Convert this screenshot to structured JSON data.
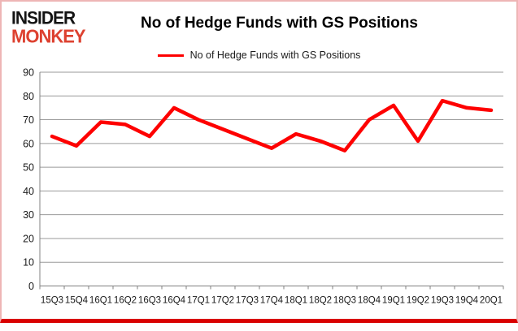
{
  "logo": {
    "line1": "INSIDER",
    "line2": "MONKEY"
  },
  "title": "No of Hedge Funds with GS Positions",
  "legend": {
    "label": "No of Hedge Funds with GS Positions"
  },
  "colors": {
    "series_line": "#fe0000",
    "logo_accent": "#dd4130",
    "gridline": "#9a9a9a",
    "axis": "#808080",
    "frame_border": "#eeb5b5",
    "bottom_rule": "#d90000",
    "label_text": "#1a1a1a"
  },
  "chart_data": {
    "type": "line",
    "title": "No of Hedge Funds with GS Positions",
    "xlabel": "",
    "ylabel": "",
    "categories": [
      "15Q3",
      "15Q4",
      "16Q1",
      "16Q2",
      "16Q3",
      "16Q4",
      "17Q1",
      "17Q2",
      "17Q3",
      "17Q4",
      "18Q1",
      "18Q2",
      "18Q3",
      "18Q4",
      "19Q1",
      "19Q2",
      "19Q3",
      "19Q4",
      "20Q1"
    ],
    "series": [
      {
        "name": "No of Hedge Funds with GS Positions",
        "color": "#fe0000",
        "values": [
          63,
          59,
          69,
          68,
          63,
          75,
          70,
          66,
          62,
          58,
          64,
          61,
          57,
          70,
          76,
          61,
          78,
          75,
          74
        ]
      }
    ],
    "ylim": [
      0,
      90
    ],
    "yticks": [
      0,
      10,
      20,
      30,
      40,
      50,
      60,
      70,
      80,
      90
    ],
    "grid": true,
    "legend_position": "top-center"
  }
}
